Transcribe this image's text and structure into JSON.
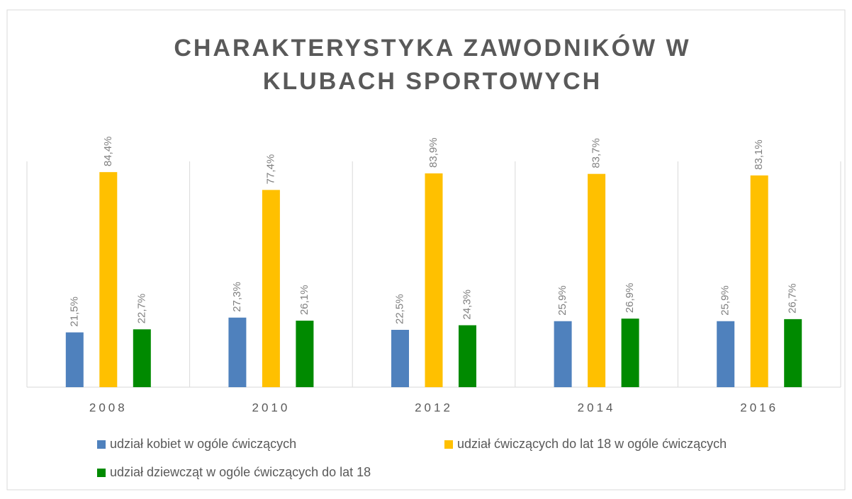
{
  "chart_data": {
    "type": "bar",
    "title": [
      "CHARAKTERYSTYKA ZAWODNIKÓW W",
      "KLUBACH SPORTOWYCH"
    ],
    "categories": [
      "2008",
      "2010",
      "2012",
      "2014",
      "2016"
    ],
    "series": [
      {
        "name": "udział kobiet w ogóle ćwiczących",
        "color": "#4f81bd",
        "values": [
          21.5,
          27.3,
          22.5,
          25.9,
          25.9
        ],
        "value_labels": [
          "21,5%",
          "27,3%",
          "22,5%",
          "25,9%",
          "25,9%"
        ]
      },
      {
        "name": "udział ćwiczących do lat 18 w ogóle ćwiczących",
        "color": "#ffc000",
        "values": [
          84.4,
          77.4,
          83.9,
          83.7,
          83.1
        ],
        "value_labels": [
          "84,4%",
          "77,4%",
          "83,9%",
          "83,7%",
          "83,1%"
        ]
      },
      {
        "name": "udział dziewcząt w ogóle ćwiczących do lat 18",
        "color": "#008a00",
        "values": [
          22.7,
          26.1,
          24.3,
          26.9,
          26.7
        ],
        "value_labels": [
          "22,7%",
          "26,1%",
          "24,3%",
          "26,9%",
          "26,7%"
        ]
      }
    ],
    "ylim": [
      0,
      100
    ]
  }
}
